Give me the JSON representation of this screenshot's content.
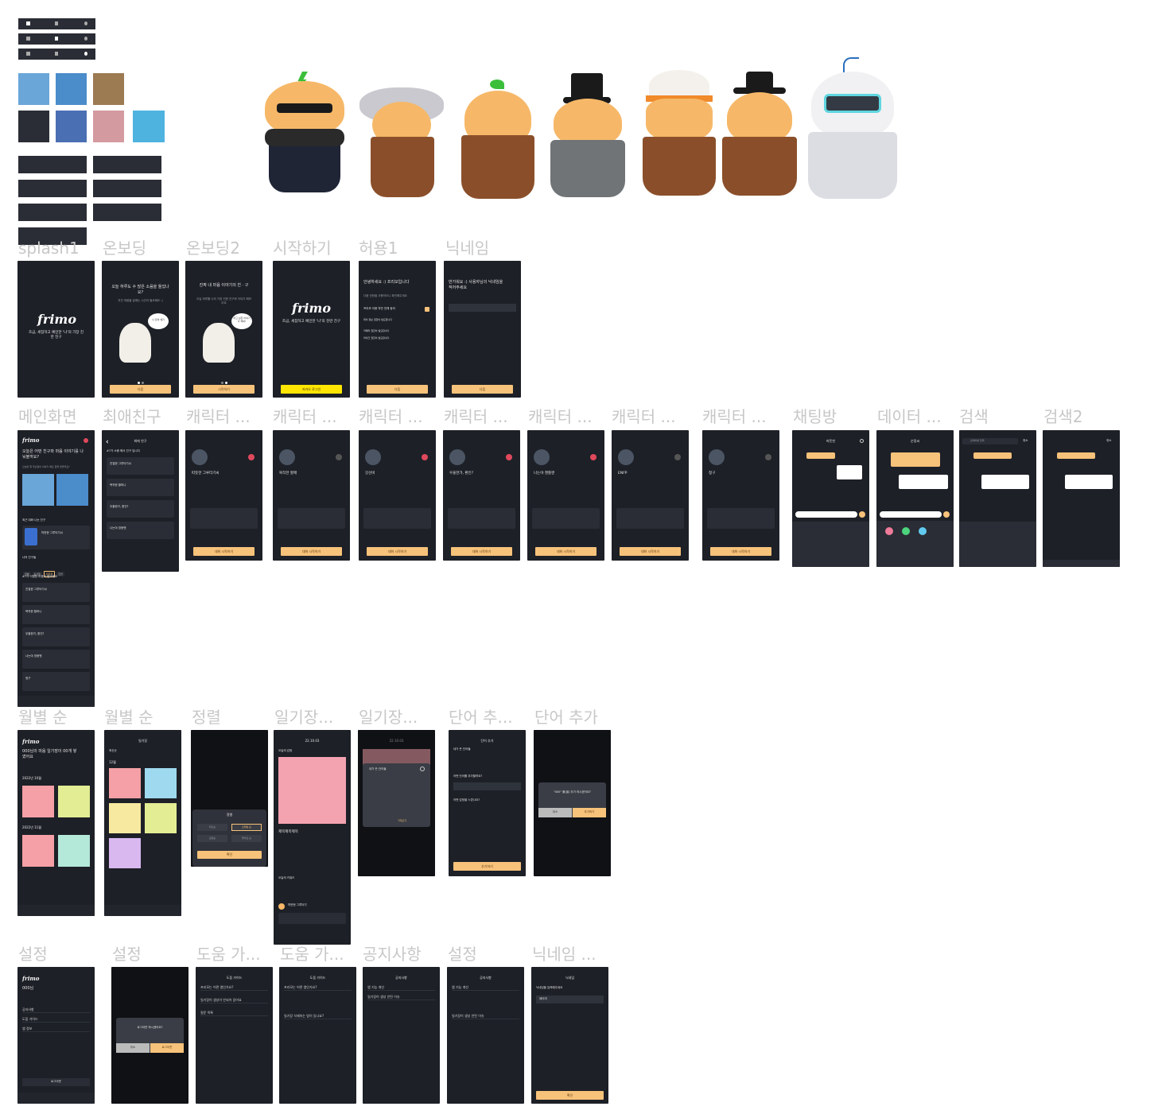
{
  "labels": {
    "splash1": "splash1",
    "onboarding": "온보딩",
    "onboarding2": "온보딩2",
    "start": "시작하기",
    "permission1": "허용1",
    "nickname": "닉네임",
    "main": "메인화면",
    "best_friend": "최애친구",
    "character1": "캐릭터 ...",
    "character2": "캐릭터 ...",
    "character3": "캐릭터 ...",
    "character4": "캐릭터 ...",
    "character5": "캐릭터 ...",
    "character6": "캐릭터 ...",
    "character7": "캐릭터 ...",
    "chatroom": "채팅방",
    "data": "데이터 ...",
    "search": "검색",
    "search2": "검색2",
    "monthly1": "월별 순",
    "monthly2": "월별 순",
    "sort": "정렬",
    "diary1": "일기장...",
    "diary2": "일기장...",
    "word_add1": "단어 추...",
    "word_add2": "단어 추가",
    "settings1": "설정",
    "settings2": "설정",
    "help1": "도움 가...",
    "help2": "도움 가...",
    "notice": "공지사항",
    "settings3": "설정",
    "nickname2": "닉네임 ..."
  },
  "colors": {
    "dark": "#1d2027",
    "accent": "#f7c27a",
    "kakao": "#ffe500",
    "label": "#c7c7c7"
  },
  "splash": {
    "logo": "frimo",
    "tagline": "조금, 세찹하고 예민한 '나'의 가장 친한 친구"
  },
  "onboarding": {
    "title": "오늘 하루도 수 많은 소음을 들었나요?",
    "sub": "지친 마음을 달래는 시간이 필요해요 :)",
    "bubble": "나 만의 얘기",
    "button": "다음"
  },
  "onboarding2": {
    "title": "진짜 내 마음 이야기의 친 · 구",
    "sub": "오늘 하루를 나의 가장 친한 친구와 이야기 해보아요",
    "bubble": "하고 싶은 이야기 다 해봐!",
    "button": "시작하기"
  },
  "start": {
    "logo": "frimo",
    "tagline": "조금, 세찹하고 예민한 '나'의 찬란 친구",
    "kakao": "카카오 로그인"
  },
  "permission": {
    "title": "안녕하세요 :) 프리모입니다",
    "sub": "다음 권한을 사용하오니 확인해주세요",
    "all": "프리모 이용 약관 전체 동의",
    "items": [
      "위치 정보 권한이 필요합니다",
      "카메라 권한이 필요합니다",
      "마이크 권한이 필요합니다"
    ],
    "button": "다음"
  },
  "nickname": {
    "title": "반가워요 :) 사용자님의 닉네임을 적어주세요",
    "button": "다음"
  },
  "main": {
    "logo": "frimo",
    "headline": "오늘은 어떤 친구와 마음 이야기를 나눠볼까요?",
    "sub": "오늘은 뭐 무슨일이 이야기 해요 함을 믿을까요?",
    "recent_title": "최근 대화 나눈 친구",
    "recent_name": "따뜻한 그루터기씨",
    "my_friends": "나의 친구들",
    "filters": [
      "전체",
      "감사형",
      "위로형",
      "조언"
    ],
    "list_title": "#7가 이렇한 마음이 필요해요",
    "friends": [
      "친절한 그루터기씨",
      "복작한 할머니",
      "우울한가, 환인?",
      "나는야 영웅맨",
      "청구"
    ]
  },
  "best": {
    "title": "최애 친구",
    "sub": "#7가 소중 해서 친구 입니다",
    "friends": [
      "친절한 그루터기씨",
      "복작한 할머니",
      "우울한가, 환인?",
      "나는야 영웅맨"
    ]
  },
  "characters": [
    {
      "name": "따뜻한 그루터기씨",
      "start": "대화 시작하기"
    },
    {
      "name": "복작한 할매",
      "start": "대화 시작하기"
    },
    {
      "name": "갓선비",
      "start": "대화 시작하기"
    },
    {
      "name": "우울한가, 환인?",
      "start": "대화 시작하기"
    },
    {
      "name": "나는야 젠틀맨",
      "start": "대화 시작하기"
    },
    {
      "name": "ENFP",
      "start": "대화 시작하기"
    },
    {
      "name": "청구",
      "start": "대화 시작하기"
    }
  ],
  "chat": {
    "title": "따뜻한",
    "data_title": "순정씨"
  },
  "search": {
    "placeholder": "검색어를 입력",
    "cancel": "취소",
    "hit": "검색어 입력"
  },
  "monthly": {
    "logo": "frimo",
    "headline": "000님의 마음 일기장이 00개 쌓였어요",
    "month1": "2022년 10월",
    "month2": "2022년 11월",
    "count": "12개"
  },
  "monthly2": {
    "title": "일기장",
    "sort": "최신순",
    "month": "12월"
  },
  "sort_modal": {
    "title": "정렬",
    "options": [
      "최신순",
      "오래된 순",
      "감정순",
      "좋아요 순"
    ],
    "confirm": "확인"
  },
  "diary": {
    "date": "22.10.03",
    "tag": "오늘의 감정",
    "title": "제목제목제목",
    "keywords_label": "오늘의 키워드",
    "comment_author": "따뜻한 그루터기",
    "date2": "22.10.03",
    "modal_title": "내가 쓴 단어들",
    "modal_btn": "가져오기"
  },
  "word": {
    "title": "단어 추가",
    "label1": "내가 쓴 단어들",
    "label2": "어떤 단어를 추가할까요?",
    "label3": "어떤 감정을 느꼈나요?",
    "button": "추가하기",
    "confirm_title": "\"000\" 를(을) 추가 하시겠어요?",
    "cancel": "취소",
    "add": "추가하기"
  },
  "settings": {
    "logo": "frimo",
    "nickname": "000님",
    "items": [
      "공지사항",
      "도움 가이드",
      "앱 정보"
    ],
    "logout": "로그아웃",
    "modal_text": "로그아웃 하시겠어요?",
    "cancel": "취소",
    "ok": "로그아웃"
  },
  "help": {
    "title": "도움 가이드",
    "q1": "프리모는 어떤 앱인가요?",
    "q2": "일기장이 생성이 안되어 있어요",
    "q3": "질문 목록",
    "h2_q1": "프리모는 어떤 앱인가요?",
    "h2_q2": "일기장 삭제하는 법이 있나요?"
  },
  "notice": {
    "title": "공지사항",
    "items": [
      "앱 기능 개선",
      "일기장이 생성 안된 이슈"
    ]
  },
  "nickname2": {
    "title": "닉네임",
    "label": "닉네임을 입력해주세요",
    "value": "제이미",
    "button": "확인"
  }
}
